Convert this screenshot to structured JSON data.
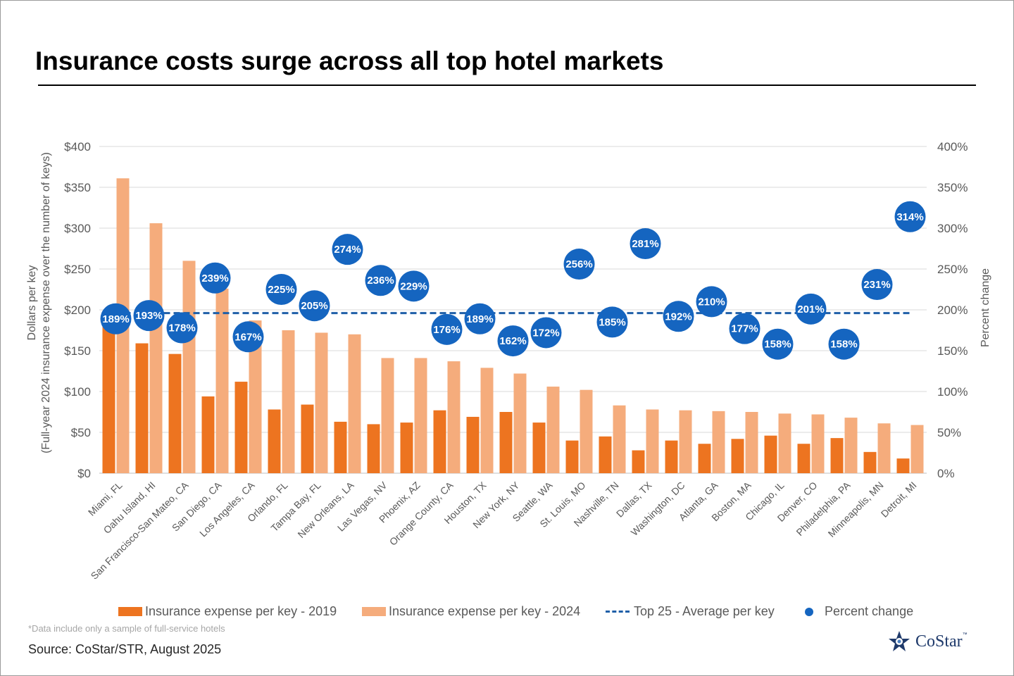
{
  "title": "Insurance costs surge across all top hotel markets",
  "chart_data": {
    "type": "bar",
    "title": "Insurance costs surge across all top hotel markets",
    "categories": [
      "Miami, FL",
      "Oahu Island, HI",
      "San Francisco-San Mateo, CA",
      "San Diego, CA",
      "Los Angeles, CA",
      "Orlando, FL",
      "Tampa Bay, FL",
      "New Orleans, LA",
      "Las Vegas, NV",
      "Phoenix, AZ",
      "Orange County, CA",
      "Houston, TX",
      "New York, NY",
      "Seattle, WA",
      "St. Louis, MO",
      "Nashville, TN",
      "Dallas, TX",
      "Washington, DC",
      "Atlanta, GA",
      "Boston, MA",
      "Chicago, IL",
      "Denver, CO",
      "Philadelphia, PA",
      "Minneapolis, MN",
      "Detroit, MI"
    ],
    "series": [
      {
        "name": "Insurance expense per key - 2019",
        "type": "bar",
        "axis": "left",
        "color": "#ed7420",
        "values": [
          190,
          159,
          146,
          94,
          112,
          78,
          84,
          63,
          60,
          62,
          77,
          69,
          75,
          62,
          40,
          45,
          28,
          40,
          36,
          42,
          46,
          36,
          43,
          26,
          18
        ]
      },
      {
        "name": "Insurance expense per key - 2024",
        "type": "bar",
        "axis": "left",
        "color": "#f5ac7c",
        "values": [
          361,
          306,
          260,
          226,
          187,
          175,
          172,
          170,
          141,
          141,
          137,
          129,
          122,
          106,
          102,
          83,
          78,
          77,
          76,
          75,
          73,
          72,
          68,
          61,
          59
        ]
      },
      {
        "name": "Top 25 - Average per key",
        "type": "line",
        "style": "dashed",
        "axis": "left",
        "color": "#1f5fa8",
        "value": 196
      },
      {
        "name": "Percent change",
        "type": "scatter",
        "axis": "right",
        "color": "#1565c0",
        "values": [
          189,
          193,
          178,
          239,
          167,
          225,
          205,
          274,
          236,
          229,
          176,
          189,
          162,
          172,
          256,
          185,
          281,
          192,
          210,
          177,
          158,
          201,
          158,
          231,
          314
        ],
        "labels": [
          "189%",
          "193%",
          "178%",
          "239%",
          "167%",
          "225%",
          "205%",
          "274%",
          "236%",
          "229%",
          "176%",
          "189%",
          "162%",
          "172%",
          "256%",
          "185%",
          "281%",
          "192%",
          "210%",
          "177%",
          "158%",
          "201%",
          "158%",
          "231%",
          "314%"
        ]
      }
    ],
    "y_left": {
      "label_line1": "Dollars per key",
      "label_line2": "(Full-year 2024 insurance expense over the number of keys)",
      "ylim": [
        0,
        400
      ],
      "ticks": [
        0,
        50,
        100,
        150,
        200,
        250,
        300,
        350,
        400
      ],
      "tick_labels": [
        "$0",
        "$50",
        "$100",
        "$150",
        "$200",
        "$250",
        "$300",
        "$350",
        "$400"
      ]
    },
    "y_right": {
      "label": "Percent change",
      "ylim": [
        0,
        400
      ],
      "ticks": [
        0,
        50,
        100,
        150,
        200,
        250,
        300,
        350,
        400
      ],
      "tick_labels": [
        "0%",
        "50%",
        "100%",
        "150%",
        "200%",
        "250%",
        "300%",
        "350%",
        "400%"
      ]
    },
    "grid": true,
    "legend_position": "bottom"
  },
  "legend": [
    {
      "label": "Insurance expense per key - 2019",
      "color": "#ed7420",
      "kind": "bar"
    },
    {
      "label": "Insurance expense per key - 2024",
      "color": "#f5ac7c",
      "kind": "bar"
    },
    {
      "label": "Top 25 - Average per key",
      "color": "#1f5fa8",
      "kind": "dashed-line"
    },
    {
      "label": "Percent change",
      "color": "#1565c0",
      "kind": "dot"
    }
  ],
  "footnote": "*Data include only a sample of full-service hotels",
  "source": "Source: CoStar/STR, August 2025",
  "logo": {
    "text": "CoStar",
    "tm": "™",
    "icon": "costar-star-icon"
  }
}
